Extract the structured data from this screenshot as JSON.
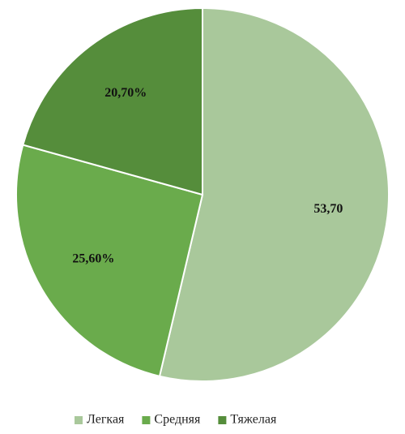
{
  "chart_data": {
    "type": "pie",
    "categories": [
      "Легкая",
      "Средняя",
      "Тяжелая"
    ],
    "values": [
      53.7,
      25.6,
      20.7
    ],
    "value_labels": [
      "53,70",
      "25,60%",
      "20,70%"
    ],
    "colors": [
      "#a9c89b",
      "#6aab4c",
      "#558d3b"
    ],
    "legend": "bottom"
  }
}
